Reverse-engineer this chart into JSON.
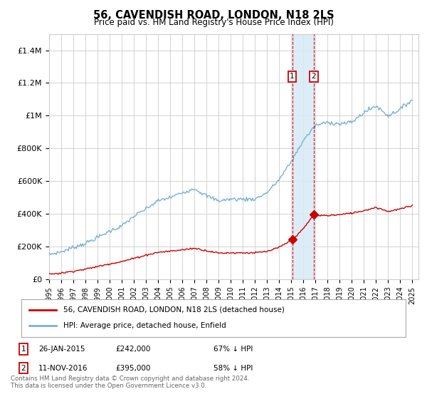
{
  "title": "56, CAVENDISH ROAD, LONDON, N18 2LS",
  "subtitle": "Price paid vs. HM Land Registry's House Price Index (HPI)",
  "legend_line1": "56, CAVENDISH ROAD, LONDON, N18 2LS (detached house)",
  "legend_line2": "HPI: Average price, detached house, Enfield",
  "transaction1_date": "26-JAN-2015",
  "transaction1_price": "£242,000",
  "transaction1_pct": "67% ↓ HPI",
  "transaction1_year": 2015.07,
  "transaction1_value": 242000,
  "transaction2_date": "11-NOV-2016",
  "transaction2_price": "£395,000",
  "transaction2_pct": "58% ↓ HPI",
  "transaction2_year": 2016.86,
  "transaction2_value": 395000,
  "footer_line1": "Contains HM Land Registry data © Crown copyright and database right 2024.",
  "footer_line2": "This data is licensed under the Open Government Licence v3.0.",
  "ylim": [
    0,
    1500000
  ],
  "yticks": [
    0,
    200000,
    400000,
    600000,
    800000,
    1000000,
    1200000,
    1400000
  ],
  "ytick_labels": [
    "£0",
    "£200K",
    "£400K",
    "£600K",
    "£800K",
    "£1M",
    "£1.2M",
    "£1.4M"
  ],
  "red_line_color": "#cc0000",
  "blue_line_color": "#7ab0d4",
  "marker_box_color": "#cc0000",
  "shade_color": "#d8eaf7",
  "background_color": "#ffffff",
  "grid_color": "#cccccc",
  "hpi_years": [
    1995,
    1996,
    1997,
    1998,
    1999,
    2000,
    2001,
    2002,
    2003,
    2004,
    2005,
    2006,
    2007,
    2008,
    2009,
    2010,
    2011,
    2012,
    2013,
    2014,
    2015,
    2016,
    2017,
    2018,
    2019,
    2020,
    2021,
    2022,
    2023,
    2024,
    2025
  ],
  "hpi_values": [
    152000,
    168000,
    195000,
    220000,
    255000,
    295000,
    325000,
    385000,
    430000,
    480000,
    500000,
    530000,
    555000,
    510000,
    480000,
    490000,
    490000,
    490000,
    530000,
    610000,
    720000,
    850000,
    940000,
    960000,
    950000,
    960000,
    1020000,
    1060000,
    1000000,
    1040000,
    1100000
  ],
  "red_years": [
    1995,
    1996,
    1997,
    1998,
    1999,
    2000,
    2001,
    2002,
    2003,
    2004,
    2005,
    2006,
    2007,
    2008,
    2009,
    2010,
    2011,
    2012,
    2013,
    2014,
    2015.07,
    2015.5,
    2016,
    2016.86,
    2017,
    2018,
    2019,
    2020,
    2021,
    2022,
    2023,
    2024,
    2025
  ],
  "red_values": [
    32000,
    38000,
    50000,
    62000,
    78000,
    95000,
    108000,
    128000,
    148000,
    165000,
    172000,
    180000,
    190000,
    175000,
    160000,
    162000,
    162000,
    162000,
    170000,
    195000,
    242000,
    270000,
    310000,
    395000,
    390000,
    390000,
    395000,
    405000,
    420000,
    440000,
    415000,
    430000,
    450000
  ]
}
